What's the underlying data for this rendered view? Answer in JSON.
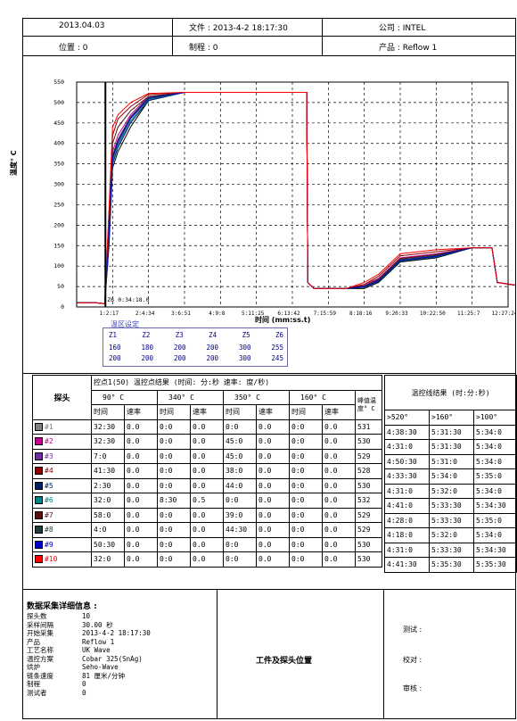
{
  "header": {
    "date": "2013.04.03",
    "file": "文件 : 2013-4-2 18:17:30",
    "company": "公司 : INTEL",
    "position": "位置 : 0",
    "process": "制程 : 0",
    "product": "产品 : Reflow 1"
  },
  "chart_data": {
    "type": "line",
    "ylabel": "温度° C",
    "xlabel": "时间 (mm:ss.t)",
    "ylim": [
      0,
      550
    ],
    "yticks": [
      "0",
      "50",
      "100",
      "150",
      "200",
      "250",
      "300",
      "350",
      "400",
      "450",
      "500",
      "550"
    ],
    "xticks": [
      "1:2:17",
      "2:4:34",
      "3:6:51",
      "4:9:8",
      "5:11:25",
      "6:13:42",
      "7:15:59",
      "8:18:16",
      "9:20:33",
      "10:22:50",
      "11:25:7",
      "12:27:24"
    ],
    "cursor_label": "0:34:18.0",
    "cursor_marker": "Z6",
    "grid": true,
    "series": [
      {
        "name": "#1",
        "color": "#000000",
        "x": [
          0.0,
          0.55,
          0.78,
          0.9,
          1.0,
          1.15,
          1.5,
          2.0,
          3.0,
          6.0,
          6.4,
          6.43,
          6.6,
          7.5,
          8.0,
          8.4,
          9.0,
          10.0,
          11.0,
          11.5,
          11.55,
          11.7,
          12.45
        ],
        "y": [
          10,
          10,
          8,
          150,
          340,
          380,
          440,
          505,
          525,
          525,
          525,
          60,
          45,
          45,
          45,
          60,
          110,
          120,
          145,
          145,
          145,
          60,
          50
        ]
      },
      {
        "name": "#2",
        "color": "#c0008c",
        "x": [
          0.0,
          0.55,
          0.78,
          0.9,
          1.0,
          1.15,
          1.5,
          2.0,
          3.0,
          6.0,
          6.4,
          6.43,
          6.6,
          7.5,
          8.0,
          8.4,
          9.0,
          10.0,
          11.0,
          11.5,
          11.55,
          11.7,
          12.45
        ],
        "y": [
          10,
          10,
          8,
          200,
          380,
          420,
          470,
          515,
          525,
          525,
          525,
          60,
          45,
          45,
          55,
          70,
          120,
          130,
          145,
          145,
          145,
          60,
          50
        ]
      },
      {
        "name": "#3",
        "color": "#7030a0",
        "x": [
          0.0,
          0.55,
          0.78,
          0.9,
          1.0,
          1.15,
          1.5,
          2.0,
          3.0,
          6.0,
          6.4,
          6.43,
          6.6,
          7.5,
          8.0,
          8.4,
          9.0,
          10.0,
          11.0,
          11.5,
          11.55,
          11.7,
          12.45
        ],
        "y": [
          10,
          10,
          8,
          180,
          360,
          400,
          460,
          510,
          525,
          525,
          525,
          60,
          45,
          45,
          50,
          65,
          115,
          125,
          145,
          145,
          145,
          60,
          50
        ]
      },
      {
        "name": "#4",
        "color": "#8b0000",
        "x": [
          0.0,
          0.55,
          0.78,
          0.9,
          1.0,
          1.15,
          1.5,
          2.0,
          3.0,
          6.0,
          6.4,
          6.43,
          6.6,
          7.5,
          8.0,
          8.4,
          9.0,
          10.0,
          11.0,
          11.5,
          11.55,
          11.7,
          12.45
        ],
        "y": [
          10,
          10,
          8,
          230,
          420,
          460,
          490,
          520,
          525,
          525,
          525,
          60,
          45,
          45,
          55,
          75,
          125,
          135,
          145,
          145,
          145,
          60,
          50
        ]
      },
      {
        "name": "#5",
        "color": "#002060",
        "x": [
          0.0,
          0.55,
          0.78,
          0.9,
          1.0,
          1.15,
          1.5,
          2.0,
          3.0,
          6.0,
          6.4,
          6.43,
          6.6,
          7.5,
          8.0,
          8.4,
          9.0,
          10.0,
          11.0,
          11.5,
          11.55,
          11.7,
          12.45
        ],
        "y": [
          10,
          10,
          8,
          160,
          350,
          390,
          450,
          505,
          525,
          525,
          525,
          60,
          45,
          45,
          48,
          62,
          112,
          122,
          145,
          145,
          145,
          60,
          50
        ]
      },
      {
        "name": "#6",
        "color": "#008080",
        "x": [
          0.0,
          0.55,
          0.78,
          0.9,
          1.0,
          1.15,
          1.5,
          2.0,
          3.0,
          6.0,
          6.4,
          6.43,
          6.6,
          7.5,
          8.0,
          8.4,
          9.0,
          10.0,
          11.0,
          11.5,
          11.55,
          11.7,
          12.45
        ],
        "y": [
          10,
          10,
          8,
          170,
          355,
          395,
          455,
          508,
          525,
          525,
          525,
          60,
          45,
          45,
          50,
          63,
          113,
          123,
          145,
          145,
          145,
          60,
          50
        ]
      },
      {
        "name": "#7",
        "color": "#5a1010",
        "x": [
          0.0,
          0.55,
          0.78,
          0.9,
          1.0,
          1.15,
          1.5,
          2.0,
          3.0,
          6.0,
          6.4,
          6.43,
          6.6,
          7.5,
          8.0,
          8.4,
          9.0,
          10.0,
          11.0,
          11.5,
          11.55,
          11.7,
          12.45
        ],
        "y": [
          10,
          10,
          8,
          210,
          400,
          440,
          480,
          515,
          525,
          525,
          525,
          60,
          45,
          45,
          52,
          68,
          118,
          128,
          145,
          145,
          145,
          60,
          50
        ]
      },
      {
        "name": "#8",
        "color": "#1f3f3f",
        "x": [
          0.0,
          0.55,
          0.78,
          0.9,
          1.0,
          1.15,
          1.5,
          2.0,
          3.0,
          6.0,
          6.4,
          6.43,
          6.6,
          7.5,
          8.0,
          8.4,
          9.0,
          10.0,
          11.0,
          11.5,
          11.55,
          11.7,
          12.45
        ],
        "y": [
          10,
          10,
          8,
          190,
          370,
          410,
          465,
          512,
          525,
          525,
          525,
          60,
          45,
          45,
          50,
          66,
          116,
          126,
          145,
          145,
          145,
          60,
          50
        ]
      },
      {
        "name": "#9",
        "color": "#0000cc",
        "x": [
          0.0,
          0.55,
          0.78,
          0.9,
          1.0,
          1.15,
          1.5,
          2.0,
          3.0,
          6.0,
          6.4,
          6.43,
          6.6,
          7.5,
          8.0,
          8.4,
          9.0,
          10.0,
          11.0,
          11.5,
          11.55,
          11.7,
          12.45
        ],
        "y": [
          10,
          10,
          8,
          175,
          365,
          405,
          462,
          510,
          525,
          525,
          525,
          60,
          45,
          45,
          50,
          64,
          114,
          124,
          145,
          145,
          145,
          60,
          50
        ]
      },
      {
        "name": "#10",
        "color": "#ff0000",
        "x": [
          0.0,
          0.55,
          0.78,
          0.9,
          1.0,
          1.15,
          1.5,
          2.0,
          3.0,
          6.0,
          6.4,
          6.43,
          6.6,
          7.5,
          8.0,
          8.4,
          9.0,
          10.0,
          11.0,
          11.5,
          11.55,
          11.7,
          12.45
        ],
        "y": [
          10,
          10,
          8,
          240,
          440,
          470,
          500,
          522,
          525,
          525,
          525,
          60,
          45,
          45,
          60,
          80,
          130,
          140,
          145,
          145,
          145,
          60,
          50
        ]
      }
    ]
  },
  "zones": {
    "title": "温区设定",
    "labels": [
      "Z1",
      "Z2",
      "Z3",
      "Z4",
      "Z5",
      "Z6"
    ],
    "row1": [
      "160",
      "180",
      "200",
      "200",
      "300",
      "255"
    ],
    "row2": [
      "200",
      "200",
      "200",
      "200",
      "300",
      "245"
    ]
  },
  "probe_table": {
    "probe_header": "探头",
    "top_header": "控点1(50)     温控点结果     (时间:  分:秒   速率: 度/秒)",
    "temps": [
      "90° C",
      "340° C",
      "350° C",
      "160° C"
    ],
    "peak_header": "峰值温度° C",
    "time_label": "时间",
    "rate_label": "速率",
    "rows": [
      {
        "name": "#1",
        "color": "#7f7f7f",
        "vals": [
          "32:30",
          "0.0",
          "0:0",
          "0.0",
          "0:0",
          "0.0",
          "0:0",
          "0.0"
        ],
        "peak": "531"
      },
      {
        "name": "#2",
        "color": "#c0008c",
        "vals": [
          "32:30",
          "0.0",
          "0:0",
          "0.0",
          "45:0",
          "0.0",
          "0:0",
          "0.0"
        ],
        "peak": "530"
      },
      {
        "name": "#3",
        "color": "#7030a0",
        "vals": [
          "7:0",
          "0.0",
          "0:0",
          "0.0",
          "45:0",
          "0.0",
          "0:0",
          "0.0"
        ],
        "peak": "529"
      },
      {
        "name": "#4",
        "color": "#8b0000",
        "vals": [
          "41:30",
          "0.0",
          "0:0",
          "0.0",
          "38:0",
          "0.0",
          "0:0",
          "0.0"
        ],
        "peak": "528"
      },
      {
        "name": "#5",
        "color": "#002060",
        "vals": [
          "2:30",
          "0.0",
          "0:0",
          "0.0",
          "44:0",
          "0.0",
          "0:0",
          "0.0"
        ],
        "peak": "530"
      },
      {
        "name": "#6",
        "color": "#008080",
        "vals": [
          "32:0",
          "0.0",
          "8:30",
          "0.5",
          "0:0",
          "0.0",
          "0:0",
          "0.0"
        ],
        "peak": "532"
      },
      {
        "name": "#7",
        "color": "#5a1010",
        "vals": [
          "58:0",
          "0.0",
          "0:0",
          "0.0",
          "39:0",
          "0.0",
          "0:0",
          "0.0"
        ],
        "peak": "529"
      },
      {
        "name": "#8",
        "color": "#1f3f3f",
        "vals": [
          "4:0",
          "0.0",
          "0:0",
          "0.0",
          "44:30",
          "0.0",
          "0:0",
          "0.0"
        ],
        "peak": "529"
      },
      {
        "name": "#9",
        "color": "#0000cc",
        "vals": [
          "50:30",
          "0.0",
          "0:0",
          "0.0",
          "0:0",
          "0.0",
          "0:0",
          "0.0"
        ],
        "peak": "530"
      },
      {
        "name": "#10",
        "color": "#ff0000",
        "vals": [
          "32:0",
          "0.0",
          "0:0",
          "0.0",
          "0:0",
          "0.0",
          "0:0",
          "0.0"
        ],
        "peak": "530"
      }
    ]
  },
  "result_table": {
    "title": "温控线结果  (时:分:秒)",
    "cols": [
      ">520°",
      ">160°",
      ">100°"
    ],
    "rows": [
      [
        "4:38:30",
        "5:31:30",
        "5:34:0"
      ],
      [
        "4:31:0",
        "5:31:30",
        "5:34:0"
      ],
      [
        "4:50:30",
        "5:31:0",
        "5:34:0"
      ],
      [
        "4:33:30",
        "5:34:0",
        "5:35:0"
      ],
      [
        "4:31:0",
        "5:32:0",
        "5:34:0"
      ],
      [
        "4:41:0",
        "5:33:30",
        "5:34:30"
      ],
      [
        "4:28:0",
        "5:33:30",
        "5:35:0"
      ],
      [
        "4:18:0",
        "5:32:0",
        "5:34:0"
      ],
      [
        "4:31:0",
        "5:33:30",
        "5:34:30"
      ],
      [
        "4:41:30",
        "5:35:30",
        "5:35:30"
      ]
    ]
  },
  "details": {
    "title": "数据采集详细信息 :",
    "rows": [
      {
        "k": "探头数",
        "v": "10"
      },
      {
        "k": "采样间隔",
        "v": "30.00 秒"
      },
      {
        "k": "开始采集",
        "v": "2013-4-2 18:17:30"
      },
      {
        "k": "产品",
        "v": "Reflow 1"
      },
      {
        "k": "工艺名称",
        "v": "UK Wave"
      },
      {
        "k": "温控方案",
        "v": "Cobar  325(SnAg)"
      },
      {
        "k": "烘炉",
        "v": "Seho-Wave"
      },
      {
        "k": "链条速度",
        "v": "81 厘米/分钟"
      },
      {
        "k": "制程",
        "v": "0"
      },
      {
        "k": "测试者",
        "v": "0"
      }
    ]
  },
  "footer": {
    "probe_position": "工件及探头位置",
    "test": "测试 :",
    "proofread": "校对 :",
    "review": "审核 :"
  }
}
